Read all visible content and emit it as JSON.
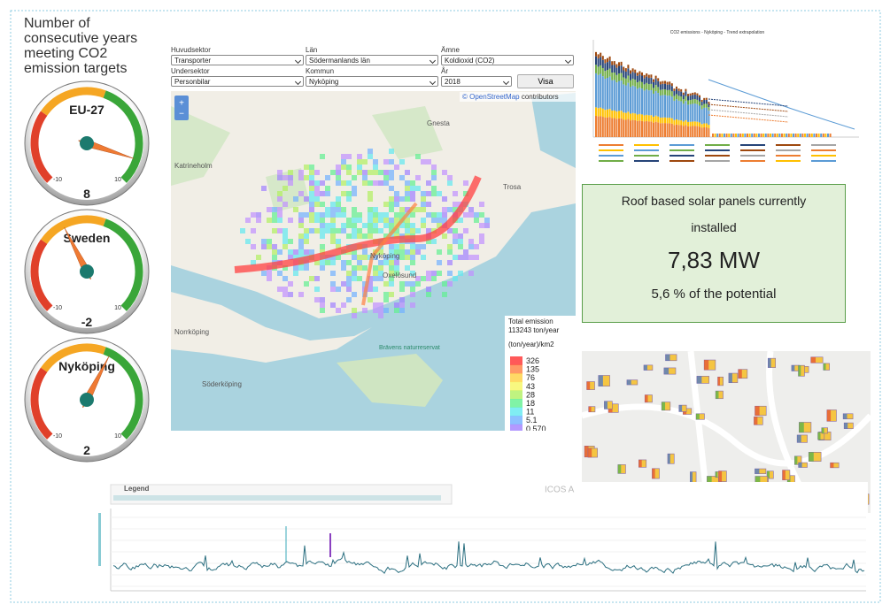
{
  "title": "Number of consecutive years meeting CO2 emission targets",
  "gauges": {
    "min": -10,
    "max": 10,
    "items": [
      {
        "name": "EU-27",
        "value": 8
      },
      {
        "name": "Sweden",
        "value": -2
      },
      {
        "name": "Nyköping",
        "value": 2
      }
    ]
  },
  "form": {
    "fields": [
      {
        "label": "Huvudsektor",
        "value": "Transporter"
      },
      {
        "label": "Län",
        "value": "Södermanlands län"
      },
      {
        "label": "Ämne",
        "value": "Koldioxid (CO2)"
      },
      {
        "label": "Undersektor",
        "value": "Personbilar"
      },
      {
        "label": "Kommun",
        "value": "Nyköping"
      },
      {
        "label": "År",
        "value": "2018"
      }
    ],
    "button": "Visa"
  },
  "map": {
    "attribution_link": "© OpenStreetMap",
    "attribution": "contributors",
    "places": [
      "Katrineholm",
      "Gnesta",
      "Trosa",
      "Nyköping",
      "Oxelösund",
      "Norrköping",
      "Söderköping",
      "Brävens naturreservat"
    ],
    "legend": {
      "title": "Total emission",
      "total": "113243 ton/year",
      "unit": "(ton/year)/km2",
      "values": [
        326,
        135,
        76,
        43,
        28,
        18,
        11,
        5.1,
        {
          "value": 0.57,
          "label": "0.570"
        }
      ]
    }
  },
  "co2_chart": {
    "title": "CO2 emissions - Nyköping - Trend extrapolation"
  },
  "solar": {
    "line1": "Roof based solar panels currently",
    "line2": "installed",
    "power": "7,83 MW",
    "share": "5,6 % of the potential"
  },
  "timeseries": {
    "legend": "Legend",
    "title": "ICOS A"
  }
}
